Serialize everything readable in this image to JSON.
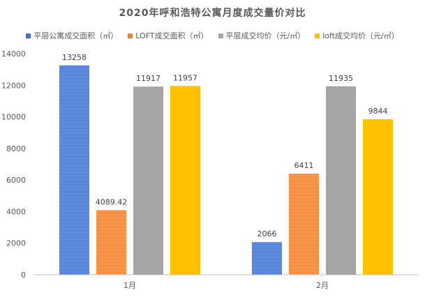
{
  "chart_data": {
    "type": "bar",
    "title": "2020年呼和浩特公寓月度成交量价对比",
    "categories": [
      "1月",
      "2月"
    ],
    "ylim": [
      0,
      14000
    ],
    "yticks": [
      0,
      2000,
      4000,
      6000,
      8000,
      10000,
      12000,
      14000
    ],
    "grid": false,
    "legend_position": "top",
    "series": [
      {
        "name": "平层公寓成交面积（㎡）",
        "values": [
          13258,
          2066
        ],
        "labels": [
          "13258",
          "2066"
        ],
        "color": "#4472C4",
        "pattern": "stripes"
      },
      {
        "name": "LOFT成交面积（㎡）",
        "values": [
          4089.42,
          6411
        ],
        "labels": [
          "4089.42",
          "6411"
        ],
        "color": "#ED7D31",
        "pattern": "stripes"
      },
      {
        "name": "平层成交均价（元/㎡）",
        "values": [
          11917,
          11935
        ],
        "labels": [
          "11917",
          "11935"
        ],
        "color": "#A5A5A5",
        "pattern": "solid"
      },
      {
        "name": "loft成交均价（元/㎡）",
        "values": [
          11957,
          9844
        ],
        "labels": [
          "11957",
          "9844"
        ],
        "color": "#FFC000",
        "pattern": "solid"
      }
    ]
  }
}
